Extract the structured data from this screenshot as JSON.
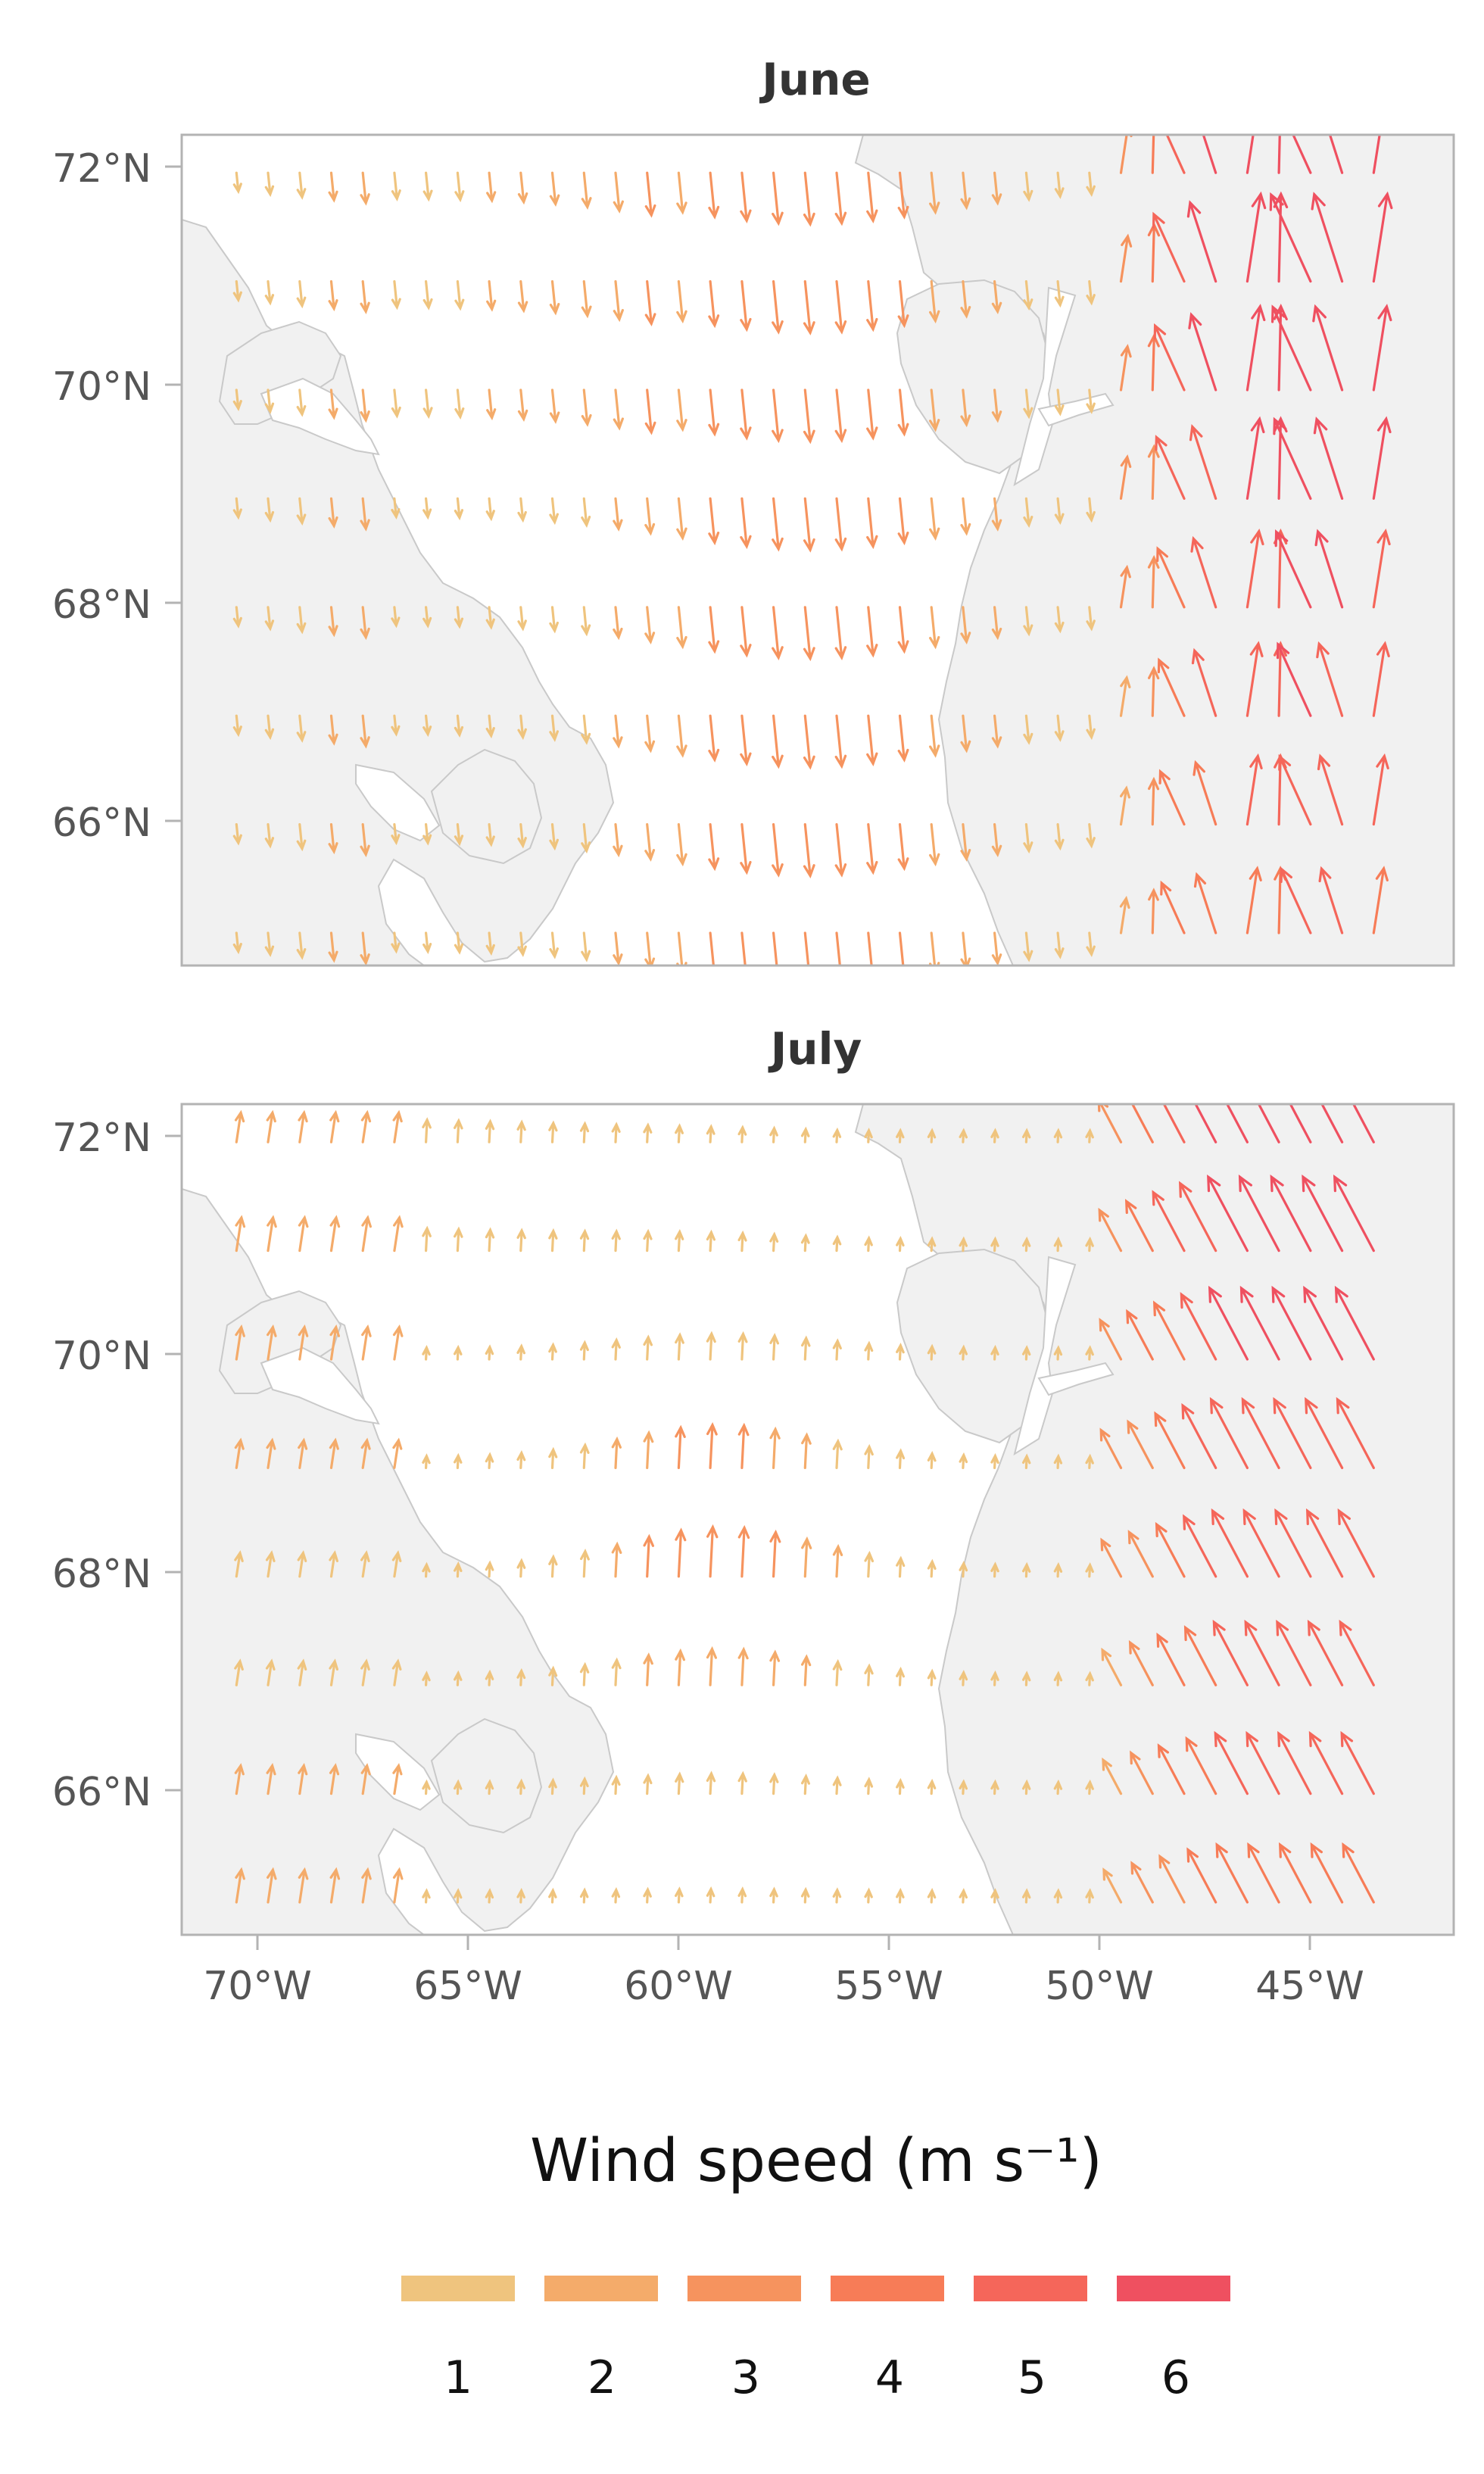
{
  "panels": [
    {
      "title": "June",
      "field": "june"
    },
    {
      "title": "July",
      "field": "july"
    }
  ],
  "y_ticks": [
    {
      "value": 72,
      "label": "72°N"
    },
    {
      "value": 70,
      "label": "70°N"
    },
    {
      "value": 68,
      "label": "68°N"
    },
    {
      "value": 66,
      "label": "66°N"
    }
  ],
  "x_ticks": [
    {
      "value": -70,
      "label": "70°W"
    },
    {
      "value": -65,
      "label": "65°W"
    },
    {
      "value": -60,
      "label": "60°W"
    },
    {
      "value": -55,
      "label": "55°W"
    },
    {
      "value": -50,
      "label": "50°W"
    },
    {
      "value": -45,
      "label": "45°W"
    }
  ],
  "extent": {
    "lon": [
      -71.8,
      -41.6
    ],
    "lat": [
      64.7,
      72.35
    ]
  },
  "legend": {
    "title": "Wind speed (m s⁻¹)",
    "values": [
      1,
      2,
      3,
      4,
      5,
      6
    ],
    "labels": [
      "1",
      "2",
      "3",
      "4",
      "5",
      "6"
    ],
    "colors": [
      "#efc47e",
      "#f4ab6a",
      "#f6935e",
      "#f77c57",
      "#f5665a",
      "#ef5060"
    ]
  },
  "colors": {
    "land": "#f1f1f1",
    "coast": "#c9c9c9",
    "sea": "#ffffff",
    "frame": "#b3b3b3"
  },
  "chart_data": {
    "type": "vector field",
    "variable": "Wind speed (m s⁻¹)",
    "lons": [
      -70.5,
      -69.75,
      -69.0,
      -68.25,
      -67.5,
      -66.75,
      -66.0,
      -65.25,
      -64.5,
      -63.75,
      -63.0,
      -62.25,
      -61.5,
      -60.75,
      -60.0,
      -59.25,
      -58.5,
      -57.75,
      -57.0,
      -56.25,
      -55.5,
      -54.75,
      -54.0,
      -53.25,
      -52.5,
      -51.75,
      -51.0,
      -50.25,
      -49.5,
      -48.75,
      -48.0,
      -47.25,
      -46.5,
      -45.75,
      -45.0,
      -44.25,
      -43.5
    ],
    "lats": [
      72.0,
      71.0,
      70.0,
      69.0,
      68.0,
      67.0,
      66.0,
      65.0
    ],
    "speed_range": [
      0,
      6.5
    ],
    "panels": [
      {
        "title": "June",
        "direction": "mostly southward over Baffin Bay; northward over Greenland east of 50°W",
        "speed_max": 6.2
      },
      {
        "title": "July",
        "direction": "mostly northward; strongest NW-ward flow over Greenland east of 50°W",
        "speed_max": 6.0
      }
    ]
  }
}
